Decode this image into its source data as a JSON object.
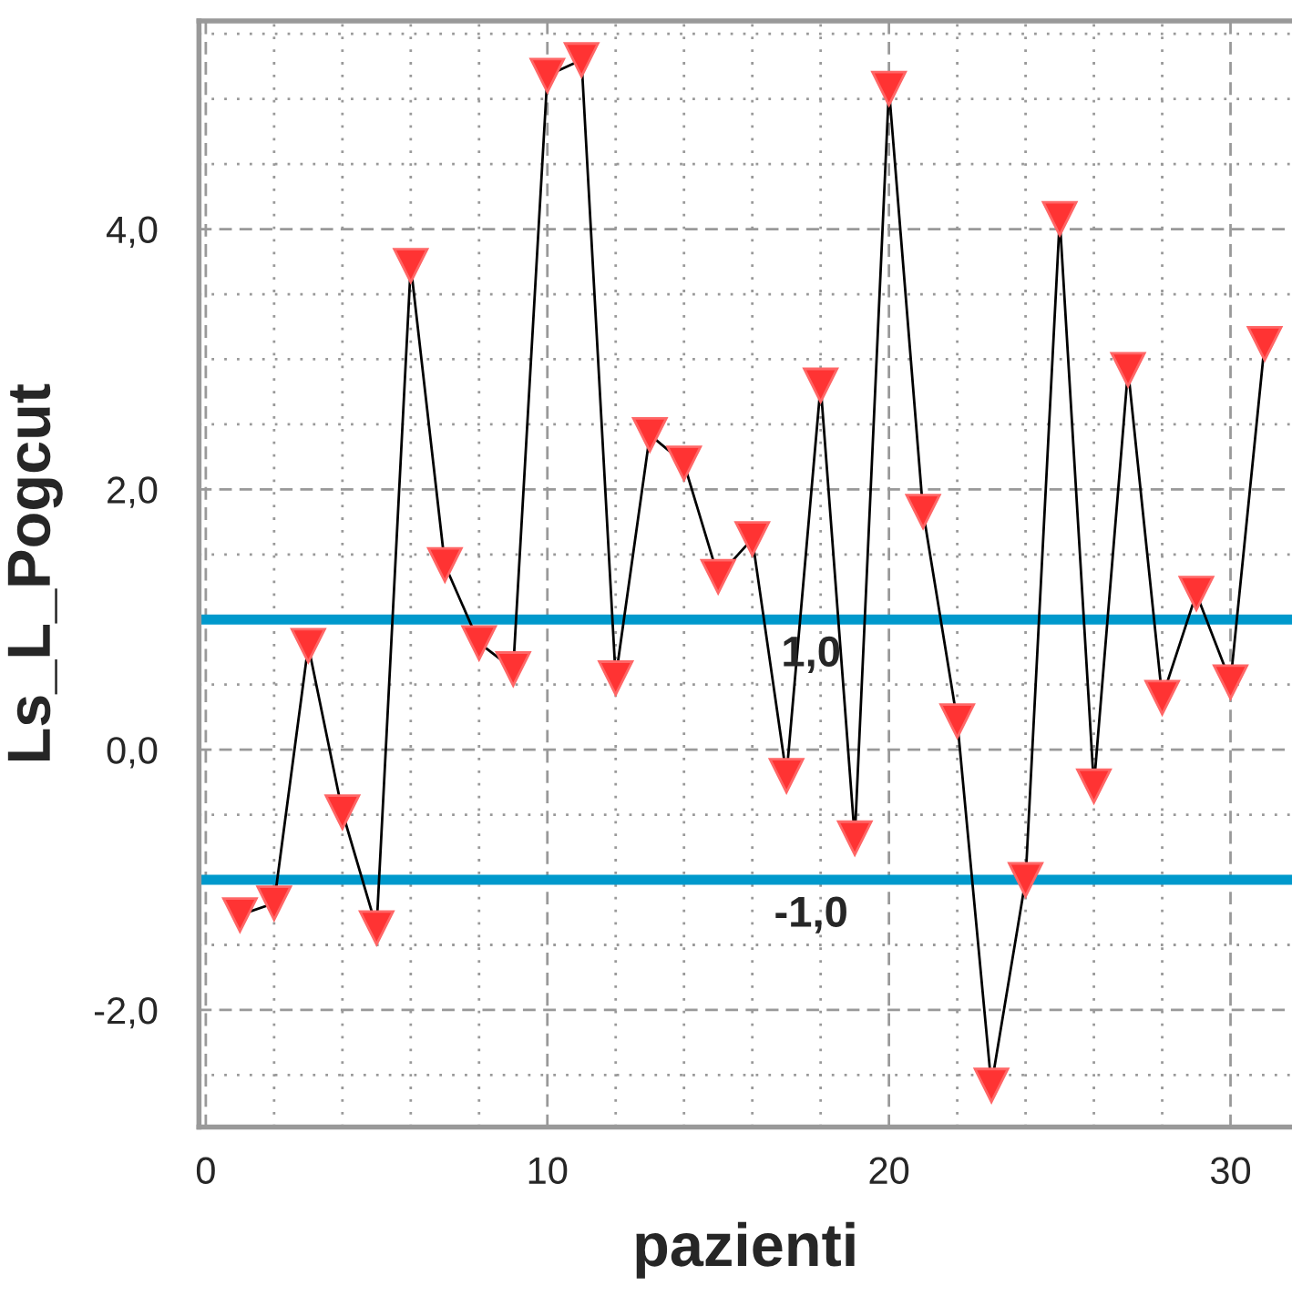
{
  "chart_data": {
    "type": "line",
    "xlabel": "pazienti",
    "ylabel": "Ls_L_Pogcut",
    "x": [
      1,
      2,
      3,
      4,
      5,
      6,
      7,
      8,
      9,
      10,
      11,
      12,
      13,
      14,
      15,
      16,
      17,
      18,
      19,
      20,
      21,
      22,
      23,
      24,
      25,
      26,
      27,
      28,
      29,
      30,
      31
    ],
    "series": [
      {
        "color": "#000000",
        "values": [
          -1.27,
          -1.18,
          0.8,
          -0.48,
          -1.37,
          3.72,
          1.42,
          0.82,
          0.62,
          5.18,
          5.3,
          0.55,
          2.42,
          2.2,
          1.33,
          1.62,
          -0.2,
          2.8,
          -0.68,
          5.08,
          1.83,
          0.22,
          -2.58,
          -1.0,
          4.08,
          -0.28,
          2.92,
          0.4,
          1.2,
          0.52,
          3.12
        ]
      }
    ],
    "marker": "triangle",
    "grid": true,
    "xlim": [
      -0.2,
      31.8
    ],
    "ylim": [
      -2.9,
      5.6
    ],
    "xticks": [
      0,
      {
        "value": 2,
        "label": null
      },
      {
        "value": 4,
        "label": null
      },
      {
        "value": 6,
        "label": null
      },
      {
        "value": 8,
        "label": null
      },
      10,
      {
        "value": 12,
        "label": null
      },
      {
        "value": 14,
        "label": null
      },
      {
        "value": 16,
        "label": null
      },
      {
        "value": 18,
        "label": null
      },
      20,
      {
        "value": 22,
        "label": null
      },
      {
        "value": 24,
        "label": null
      },
      {
        "value": 26,
        "label": null
      },
      {
        "value": 28,
        "label": null
      },
      30
    ],
    "yticks": [
      {
        "value": -2,
        "label": "-2,0"
      },
      {
        "value": 0,
        "label": "0,0"
      },
      {
        "value": 2,
        "label": "2,0"
      },
      {
        "value": 4,
        "label": "4,0"
      }
    ],
    "ref_lines": [
      {
        "axis": "y",
        "value": 1.0,
        "label": "1,0",
        "color": "#0099cc"
      },
      {
        "axis": "y",
        "value": -1.0,
        "label": "-1,0",
        "color": "#0099cc"
      }
    ]
  }
}
